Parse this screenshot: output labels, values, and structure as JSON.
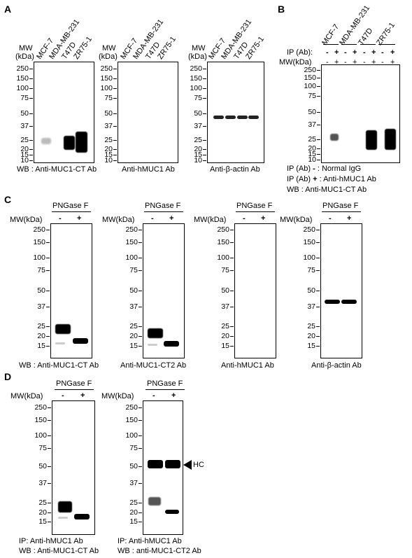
{
  "panel_A": {
    "letter": "A",
    "mw_label_1": "MW",
    "mw_label_2": "(kDa)",
    "cell_lines": [
      "MCF-7",
      "MDA-MB-231",
      "T47D",
      "ZR75-1"
    ],
    "markers": [
      "250",
      "150",
      "100",
      "75",
      "50",
      "37",
      "25",
      "20",
      "15",
      "10"
    ],
    "blot_labels": [
      "WB : Anti-MUC1-CT Ab",
      "Anti-hMUC1 Ab",
      "Anti-β-actin Ab"
    ]
  },
  "panel_B": {
    "letter": "B",
    "cell_lines": [
      "MCF-7",
      "MDA-MB-231",
      "T47D",
      "ZR75-1"
    ],
    "ip_row_label": "IP (Ab):",
    "mw_row_label": "MW(kDa)",
    "ip_signs": [
      "-",
      "+",
      "-",
      "+",
      "-",
      "+",
      "-",
      "+"
    ],
    "markers": [
      "250",
      "150",
      "100",
      "75",
      "50",
      "37",
      "25",
      "20",
      "15",
      "10"
    ],
    "legend": [
      {
        "prefix": "IP (Ab)",
        "sign": "-",
        "text": ": Normal IgG"
      },
      {
        "prefix": "IP (Ab)",
        "sign": "+",
        "text": ": Anti-hMUC1 Ab"
      },
      {
        "prefix": "WB",
        "sign": "",
        "text": ": Anti-MUC1-CT Ab"
      }
    ]
  },
  "panel_C": {
    "letter": "C",
    "treatment": "PNGase F",
    "mw_row_label": "MW(kDa)",
    "signs": [
      "-",
      "+"
    ],
    "markers": [
      "250",
      "150",
      "100",
      "75",
      "50",
      "37",
      "25",
      "20",
      "15"
    ],
    "blot_labels": [
      "WB : Anti-MUC1-CT Ab",
      "Anti-MUC1-CT2 Ab",
      "Anti-hMUC1 Ab",
      "Anti-β-actin Ab"
    ]
  },
  "panel_D": {
    "letter": "D",
    "treatment": "PNGase F",
    "mw_row_label": "MW(kDa)",
    "signs": [
      "-",
      "+"
    ],
    "markers": [
      "250",
      "150",
      "100",
      "75",
      "50",
      "37",
      "25",
      "20",
      "15"
    ],
    "hc_label": "HC",
    "blot1_labels": [
      "IP: Anti-hMUC1 Ab",
      "WB : Anti-MUC1-CT Ab"
    ],
    "blot2_labels": [
      "IP: Anti-hMUC1 Ab",
      "WB : anti-MUC1-CT2 Ab"
    ]
  }
}
